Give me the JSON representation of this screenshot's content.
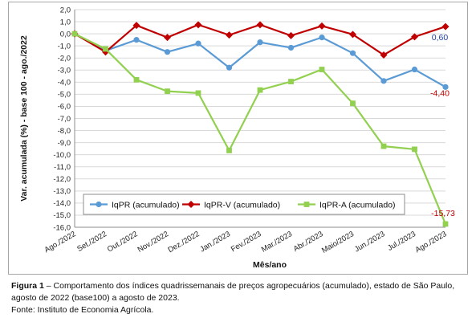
{
  "chart_data": {
    "type": "line",
    "xlabel": "Mês/ano",
    "ylabel": "Var. acumulada (%) - base 100 - ago./2022",
    "ylim": [
      -16.0,
      2.0
    ],
    "ytick_step": 1.0,
    "categories": [
      "Ago./2022",
      "Set./2022",
      "Out./2022",
      "Nov./2022",
      "Dez./2022",
      "Jan./2023",
      "Fev./2023",
      "Mar./2023",
      "Abr./2023",
      "Maio/2023",
      "Jun./2023",
      "Jul./2023",
      "Ago./2023"
    ],
    "grid": true,
    "legend_position": "bottom-center",
    "series": [
      {
        "name": "IqPR (acumulado)",
        "color": "#5b9bd5",
        "marker": "circle",
        "values": [
          0.0,
          -1.4,
          -0.5,
          -1.5,
          -0.8,
          -2.8,
          -0.7,
          -1.15,
          -0.3,
          -1.6,
          -3.9,
          -2.95,
          -4.4
        ],
        "end_label": "-4,40",
        "end_label_color": "#c00000"
      },
      {
        "name": "IqPR-V  (acumulado)",
        "color": "#c00000",
        "marker": "diamond",
        "values": [
          0.0,
          -1.5,
          0.7,
          -0.3,
          0.75,
          -0.1,
          0.75,
          -0.15,
          0.65,
          -0.05,
          -1.75,
          -0.25,
          0.6
        ],
        "end_label": "0,60",
        "end_label_color": "#1f3f9f"
      },
      {
        "name": "IqPR-A  (acumulado)",
        "color": "#92d050",
        "marker": "square",
        "values": [
          0.0,
          -1.25,
          -3.8,
          -4.75,
          -4.9,
          -9.65,
          -4.65,
          -3.95,
          -2.95,
          -5.75,
          -9.3,
          -9.55,
          -15.73
        ],
        "end_label": "-15,73",
        "end_label_color": "#c00000"
      }
    ]
  },
  "caption": {
    "figure_label": "Figura 1",
    "text": " – Comportamento dos índices quadrissemanais de preços agropecuários (acumulado), estado de São Paulo, agosto de 2022 (base100) a agosto de 2023.",
    "source": "Fonte: Instituto de Economia Agrícola."
  }
}
